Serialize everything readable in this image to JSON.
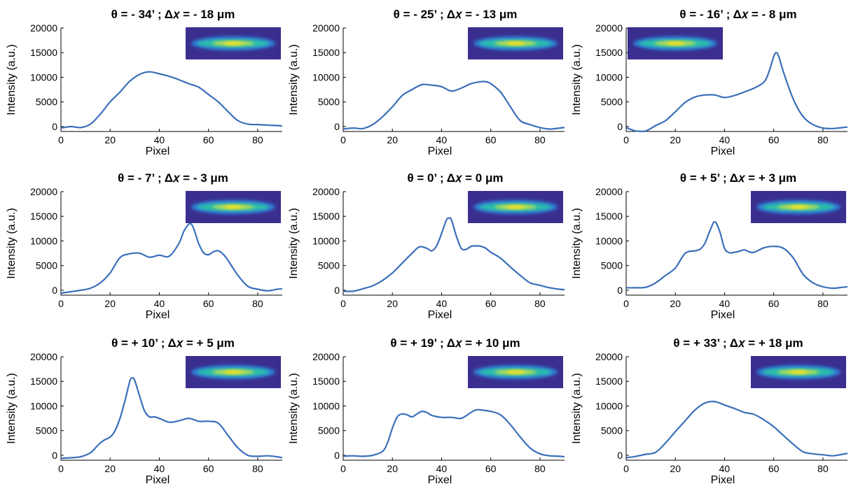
{
  "chart_data": [
    {
      "type": "line",
      "title": "θ = - 34’ ; Δ𝑥 = - 18 μm",
      "xlabel": "Pixel",
      "ylabel": "Intensity (a.u.)",
      "xlim": [
        0,
        90
      ],
      "ylim": [
        -1000,
        20000
      ],
      "xticks": [
        "0",
        "20",
        "40",
        "60",
        "80"
      ],
      "yticks": [
        "0",
        "5000",
        "10000",
        "15000",
        "20000"
      ],
      "inset_position": "top-right",
      "x": [
        0,
        4,
        8,
        12,
        16,
        20,
        24,
        28,
        32,
        36,
        40,
        44,
        48,
        52,
        56,
        60,
        64,
        68,
        72,
        76,
        80,
        84,
        88,
        90
      ],
      "y": [
        -300,
        0,
        -200,
        500,
        2500,
        5000,
        7000,
        9200,
        10600,
        11100,
        10700,
        10200,
        9500,
        8700,
        8000,
        6500,
        5000,
        3000,
        1200,
        500,
        400,
        300,
        200,
        100
      ]
    },
    {
      "type": "line",
      "title": "θ = - 25’ ; Δ𝑥 = - 13 μm",
      "xlabel": "Pixel",
      "ylabel": "Intensity (a.u.)",
      "xlim": [
        0,
        90
      ],
      "ylim": [
        -1000,
        20000
      ],
      "xticks": [
        "0",
        "20",
        "40",
        "60",
        "80"
      ],
      "yticks": [
        "0",
        "5000",
        "10000",
        "15000",
        "20000"
      ],
      "inset_position": "top-right",
      "x": [
        0,
        4,
        8,
        12,
        16,
        20,
        24,
        28,
        32,
        36,
        40,
        44,
        48,
        52,
        56,
        58,
        60,
        64,
        68,
        72,
        76,
        80,
        84,
        88,
        90
      ],
      "y": [
        -500,
        -300,
        -400,
        400,
        2000,
        4000,
        6300,
        7500,
        8500,
        8400,
        8100,
        7200,
        7800,
        8700,
        9100,
        9100,
        8700,
        7000,
        4000,
        1200,
        400,
        -200,
        -500,
        -300,
        -200
      ]
    },
    {
      "type": "line",
      "title": "θ = - 16’ ; Δ𝑥 = - 8 μm",
      "xlabel": "Pixel",
      "ylabel": "Intensity (a.u.)",
      "xlim": [
        0,
        90
      ],
      "ylim": [
        -1000,
        20000
      ],
      "xticks": [
        "0",
        "20",
        "40",
        "60",
        "80"
      ],
      "yticks": [
        "0",
        "5000",
        "10000",
        "15000",
        "20000"
      ],
      "inset_position": "top-left",
      "x": [
        0,
        2,
        4,
        8,
        12,
        16,
        20,
        24,
        28,
        32,
        36,
        40,
        44,
        48,
        52,
        56,
        58,
        60,
        61,
        62,
        64,
        68,
        72,
        76,
        80,
        84,
        88,
        90
      ],
      "y": [
        -200,
        -600,
        -900,
        -900,
        200,
        1200,
        3000,
        4900,
        6000,
        6400,
        6400,
        5900,
        6300,
        7000,
        7800,
        9000,
        11000,
        14200,
        15000,
        14300,
        11000,
        5500,
        2000,
        400,
        -300,
        -400,
        -200,
        -100
      ]
    },
    {
      "type": "line",
      "title": "θ = - 7’ ; Δ𝑥 = - 3 μm",
      "xlabel": "Pixel",
      "ylabel": "Intensity (a.u.)",
      "xlim": [
        0,
        90
      ],
      "ylim": [
        -1000,
        20000
      ],
      "xticks": [
        "0",
        "20",
        "40",
        "60",
        "80"
      ],
      "yticks": [
        "0",
        "5000",
        "10000",
        "15000",
        "20000"
      ],
      "inset_position": "top-right",
      "x": [
        0,
        4,
        8,
        12,
        16,
        20,
        24,
        28,
        32,
        36,
        40,
        44,
        48,
        50,
        52,
        53,
        54,
        56,
        58,
        60,
        62,
        64,
        66,
        68,
        72,
        76,
        80,
        84,
        88,
        90
      ],
      "y": [
        -600,
        -300,
        0,
        400,
        1500,
        3500,
        6600,
        7400,
        7500,
        6700,
        7100,
        6900,
        9500,
        12000,
        13400,
        13400,
        12500,
        9500,
        7600,
        7200,
        7800,
        8000,
        7300,
        6000,
        3000,
        800,
        200,
        -100,
        200,
        300
      ]
    },
    {
      "type": "line",
      "title": "θ = 0’ ; Δ𝑥 = 0 μm",
      "xlabel": "Pixel",
      "ylabel": "Intensity (a.u.)",
      "xlim": [
        0,
        90
      ],
      "ylim": [
        -1000,
        20000
      ],
      "xticks": [
        "0",
        "20",
        "40",
        "60",
        "80"
      ],
      "yticks": [
        "0",
        "5000",
        "10000",
        "15000",
        "20000"
      ],
      "inset_position": "top-right",
      "x": [
        0,
        4,
        8,
        12,
        16,
        20,
        24,
        28,
        31,
        34,
        36,
        38,
        40,
        42,
        43,
        44,
        46,
        48,
        50,
        52,
        54,
        56,
        58,
        60,
        64,
        68,
        72,
        76,
        80,
        84,
        88,
        90
      ],
      "y": [
        -200,
        -200,
        300,
        900,
        2000,
        3500,
        5500,
        7500,
        8800,
        8500,
        8000,
        9000,
        11500,
        14300,
        14600,
        14300,
        11000,
        8500,
        8300,
        8900,
        9000,
        8900,
        8500,
        7700,
        6500,
        4700,
        3000,
        1500,
        1000,
        500,
        200,
        100
      ]
    },
    {
      "type": "line",
      "title": "θ = + 5’ ; Δ𝑥 = + 3 μm",
      "xlabel": "Pixel",
      "ylabel": "Intensity (a.u.)",
      "xlim": [
        0,
        90
      ],
      "ylim": [
        -1000,
        20000
      ],
      "xticks": [
        "0",
        "20",
        "40",
        "60",
        "80"
      ],
      "yticks": [
        "0",
        "5000",
        "10000",
        "15000",
        "20000"
      ],
      "inset_position": "top-right",
      "x": [
        0,
        4,
        8,
        12,
        16,
        20,
        24,
        28,
        30,
        32,
        34,
        36,
        38,
        40,
        42,
        44,
        46,
        48,
        50,
        52,
        56,
        60,
        64,
        68,
        72,
        76,
        80,
        84,
        88,
        90
      ],
      "y": [
        500,
        500,
        600,
        1500,
        3000,
        4500,
        7500,
        8000,
        8300,
        9500,
        12000,
        13900,
        12000,
        8500,
        7600,
        7700,
        7900,
        8200,
        7800,
        7700,
        8600,
        8900,
        8500,
        6500,
        3200,
        1500,
        700,
        400,
        600,
        700
      ]
    },
    {
      "type": "line",
      "title": "θ = + 10’ ; Δ𝑥 = + 5 μm",
      "xlabel": "Pixel",
      "ylabel": "Intensity (a.u.)",
      "xlim": [
        0,
        90
      ],
      "ylim": [
        -1000,
        20000
      ],
      "xticks": [
        "0",
        "20",
        "40",
        "60",
        "80"
      ],
      "yticks": [
        "0",
        "5000",
        "10000",
        "15000",
        "20000"
      ],
      "inset_position": "top-right",
      "x": [
        0,
        4,
        8,
        12,
        14,
        16,
        18,
        20,
        22,
        24,
        26,
        28,
        29,
        30,
        32,
        34,
        36,
        38,
        40,
        44,
        48,
        52,
        56,
        60,
        64,
        68,
        72,
        76,
        80,
        84,
        88,
        90
      ],
      "y": [
        -600,
        -500,
        -300,
        500,
        1500,
        2500,
        3200,
        3700,
        5000,
        7500,
        11000,
        15000,
        15700,
        15200,
        12000,
        9000,
        7800,
        7800,
        7500,
        6700,
        7000,
        7500,
        6900,
        6900,
        6500,
        4000,
        1500,
        0,
        -200,
        -100,
        -300,
        -500
      ]
    },
    {
      "type": "line",
      "title": "θ = + 19’ ; Δ𝑥 = + 10 μm",
      "xlabel": "Pixel",
      "ylabel": "Intensity (a.u.)",
      "xlim": [
        0,
        90
      ],
      "ylim": [
        -1000,
        20000
      ],
      "xticks": [
        "0",
        "20",
        "40",
        "60",
        "80"
      ],
      "yticks": [
        "0",
        "5000",
        "10000",
        "15000",
        "20000"
      ],
      "inset_position": "top-right",
      "x": [
        0,
        4,
        8,
        12,
        16,
        18,
        20,
        22,
        24,
        26,
        28,
        30,
        32,
        34,
        36,
        40,
        44,
        48,
        52,
        54,
        56,
        60,
        64,
        68,
        72,
        76,
        80,
        84,
        88,
        90
      ],
      "y": [
        -200,
        -100,
        -200,
        0,
        800,
        2500,
        5500,
        7800,
        8400,
        8200,
        7800,
        8400,
        8900,
        8700,
        8100,
        7700,
        7700,
        7500,
        8700,
        9200,
        9200,
        8900,
        8200,
        6200,
        3700,
        1500,
        300,
        -100,
        -200,
        -300
      ]
    },
    {
      "type": "line",
      "title": "θ = + 33’ ; Δ𝑥 = + 18 μm",
      "xlabel": "Pixel",
      "ylabel": "Intensity (a.u.)",
      "xlim": [
        0,
        90
      ],
      "ylim": [
        -1000,
        20000
      ],
      "xticks": [
        "0",
        "20",
        "40",
        "60",
        "80"
      ],
      "yticks": [
        "0",
        "5000",
        "10000",
        "15000",
        "20000"
      ],
      "inset_position": "top-right",
      "x": [
        0,
        4,
        8,
        12,
        16,
        20,
        24,
        28,
        32,
        36,
        40,
        44,
        48,
        52,
        56,
        60,
        64,
        68,
        72,
        76,
        80,
        84,
        88,
        90
      ],
      "y": [
        -500,
        -200,
        200,
        600,
        2500,
        4800,
        7000,
        9200,
        10600,
        10900,
        10200,
        9500,
        8700,
        8300,
        7200,
        5800,
        4000,
        2200,
        700,
        300,
        100,
        -100,
        200,
        400
      ]
    }
  ]
}
